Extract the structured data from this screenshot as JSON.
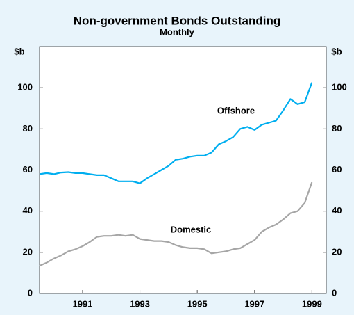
{
  "chart_data": {
    "type": "line",
    "title": "Non-government Bonds Outstanding",
    "subtitle": "Monthly",
    "ylabel": "$b",
    "y2label": "$b",
    "x": [
      1989.5,
      1989.75,
      1990,
      1990.25,
      1990.5,
      1990.75,
      1991,
      1991.25,
      1991.5,
      1991.75,
      1992,
      1992.25,
      1992.5,
      1992.75,
      1993,
      1993.25,
      1993.5,
      1993.75,
      1994,
      1994.25,
      1994.5,
      1994.75,
      1995,
      1995.25,
      1995.5,
      1995.75,
      1996,
      1996.25,
      1996.5,
      1996.75,
      1997,
      1997.25,
      1997.5,
      1997.75,
      1998,
      1998.25,
      1998.5,
      1998.75,
      1999
    ],
    "series": [
      {
        "name": "Offshore",
        "color": "#00aeef",
        "values": [
          58,
          58.5,
          58,
          58.8,
          59,
          58.5,
          58.5,
          58,
          57.5,
          57.5,
          56,
          54.5,
          54.5,
          54.5,
          53.5,
          56,
          58,
          60,
          62,
          65,
          65.5,
          66.5,
          67,
          67,
          68.5,
          72.5,
          74,
          76,
          80,
          81,
          79.5,
          82,
          83,
          84,
          89,
          94.5,
          92,
          93,
          102.5
        ]
      },
      {
        "name": "Domestic",
        "color": "#a6a6a6",
        "values": [
          13.5,
          15,
          17,
          18.5,
          20.5,
          21.5,
          23,
          25,
          27.5,
          28,
          28,
          28.5,
          28,
          28.5,
          26.5,
          26,
          25.5,
          25.5,
          25,
          23.5,
          22.5,
          22,
          22,
          21.5,
          19.5,
          20,
          20.5,
          21.5,
          22,
          24,
          26,
          30,
          32,
          33.5,
          36,
          39,
          40,
          44,
          54
        ]
      }
    ],
    "xlim": [
      1989.5,
      1999.5
    ],
    "xticks": [
      1991,
      1993,
      1995,
      1997,
      1999
    ],
    "ylim": [
      0,
      120
    ],
    "yticks": [
      0,
      20,
      40,
      60,
      80,
      100
    ],
    "y2lim": [
      0,
      120
    ],
    "y2ticks": [
      0,
      20,
      40,
      60,
      80,
      100
    ]
  }
}
